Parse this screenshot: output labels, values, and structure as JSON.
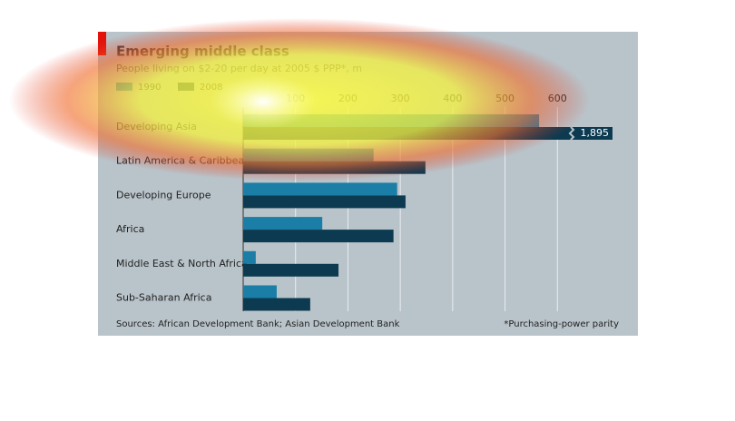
{
  "chart_data": {
    "type": "bar",
    "orientation": "horizontal",
    "title": "Emerging middle class",
    "subtitle": "People living on $2-20 per day at 2005 $ PPP*, m",
    "categories": [
      "Developing Asia",
      "Latin America & Caribbean",
      "Developing Europe",
      "Africa",
      "Middle East & North Africa",
      "Sub-Saharan Africa"
    ],
    "series": [
      {
        "name": "1990",
        "color": "#1a7ea6",
        "values": [
          565,
          249,
          294,
          151,
          24,
          64
        ]
      },
      {
        "name": "2008",
        "color": "#0c3a50",
        "values": [
          1895,
          348,
          310,
          287,
          182,
          128
        ],
        "value_labels": [
          "1,895",
          null,
          null,
          null,
          null,
          null
        ]
      }
    ],
    "xlim": [
      0,
      700
    ],
    "xticks": [
      100,
      200,
      300,
      400,
      500,
      600
    ],
    "grid": true,
    "legend": "top-left",
    "source": "Sources: African Development Bank; Asian Development Bank",
    "footnote": "*Purchasing-power parity"
  }
}
